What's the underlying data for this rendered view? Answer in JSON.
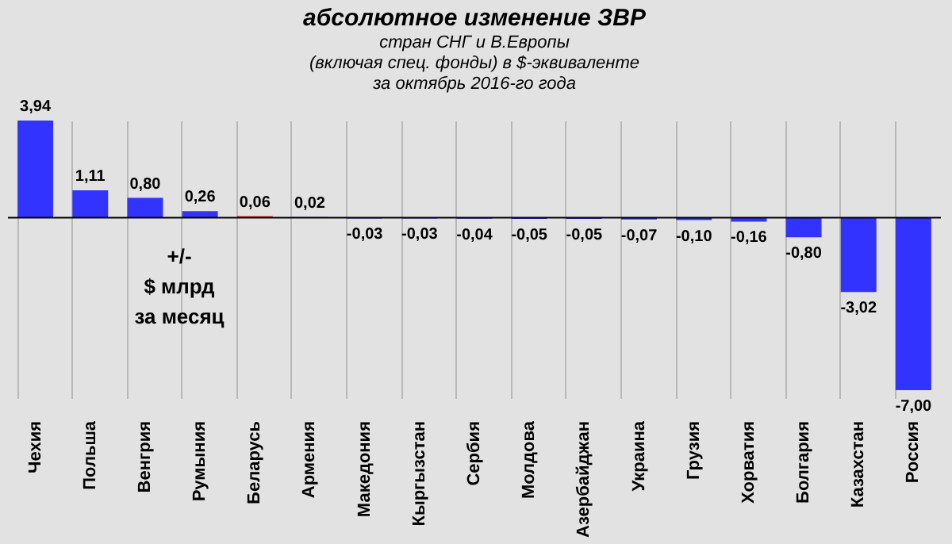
{
  "chart_data": {
    "type": "bar",
    "title": "абсолютное изменение  ЗВР",
    "subtitle": "стран СНГ и В.Европы\n(включая  спец. фонды) в $-эквиваленте\nза октябрь 2016-го года",
    "annotations": [
      "+/-\n$ млрд\nза месяц"
    ],
    "categories": [
      "Чехия",
      "Польша",
      "Венгрия",
      "Румыния",
      "Беларусь",
      "Армения",
      "Македония",
      "Кыргызстан",
      "Сербия",
      "Молдова",
      "Азербайджан",
      "Украина",
      "Грузия",
      "Хорватия",
      "Болгария",
      "Казахстан",
      "Россия"
    ],
    "values": [
      3.94,
      1.11,
      0.8,
      0.26,
      0.06,
      0.02,
      -0.03,
      -0.03,
      -0.04,
      -0.05,
      -0.05,
      -0.07,
      -0.1,
      -0.16,
      -0.8,
      -3.02,
      -7.0
    ],
    "colors": [
      "#3333ff",
      "#3333ff",
      "#3333ff",
      "#3333ff",
      "#e03030",
      "#3333ff",
      "#3333ff",
      "#3333ff",
      "#3333ff",
      "#3333ff",
      "#3333ff",
      "#3333ff",
      "#3333ff",
      "#3333ff",
      "#3333ff",
      "#3333ff",
      "#3333ff"
    ],
    "value_labels": [
      "3,94",
      "1,11",
      "0,80",
      "0,26",
      "0,06",
      "0,02",
      "-0,03",
      "-0,03",
      "-0,04",
      "-0,05",
      "-0,05",
      "-0,07",
      "-0,10",
      "-0,16",
      "-0,80",
      "-3,02",
      "-7,00"
    ],
    "grid": "x"
  }
}
